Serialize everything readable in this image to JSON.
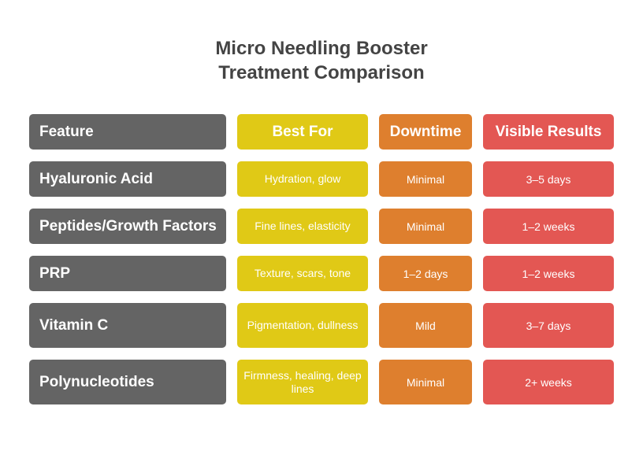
{
  "title_line1": "Micro Needling Booster",
  "title_line2": "Treatment Comparison",
  "colors": {
    "feature": "#646464",
    "best_for": "#e0c916",
    "downtime": "#de7f2e",
    "results": "#e35753",
    "title": "#444444"
  },
  "headers": [
    "Feature",
    "Best For",
    "Downtime",
    "Visible Results"
  ],
  "rows": [
    [
      "Hyaluronic Acid",
      "Hydration, glow",
      "Minimal",
      "3–5 days"
    ],
    [
      "Peptides/Growth Factors",
      "Fine lines, elasticity",
      "Minimal",
      "1–2 weeks"
    ],
    [
      "PRP",
      "Texture, scars, tone",
      "1–2 days",
      "1–2 weeks"
    ],
    [
      "Vitamin C",
      "Pigmentation, dullness",
      "Mild",
      "3–7 days"
    ],
    [
      "Polynucleotides",
      "Firmness, healing, deep lines",
      "Minimal",
      "2+ weeks"
    ]
  ]
}
